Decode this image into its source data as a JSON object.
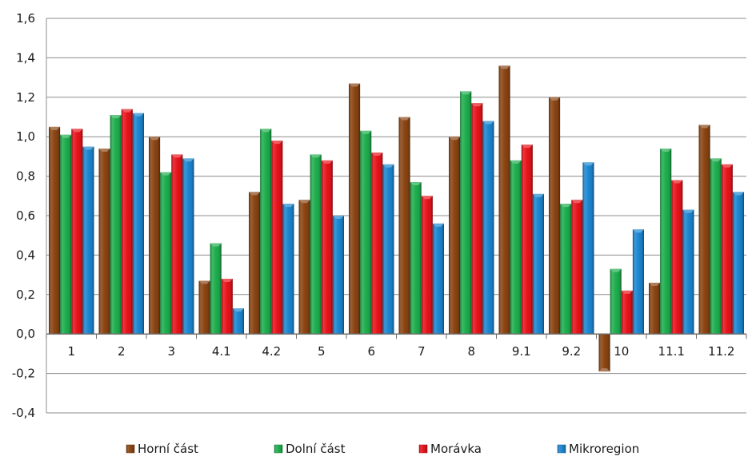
{
  "chart_data": {
    "type": "bar",
    "categories": [
      "1",
      "2",
      "3",
      "4.1",
      "4.2",
      "5",
      "6",
      "7",
      "8",
      "9.1",
      "9.2",
      "10",
      "11.1",
      "11.2"
    ],
    "series": [
      {
        "name": "Horní část",
        "color": "#8B4513",
        "values": [
          1.05,
          0.94,
          1.0,
          0.27,
          0.72,
          0.68,
          1.27,
          1.1,
          1.0,
          1.36,
          1.2,
          -0.19,
          0.26,
          1.06
        ]
      },
      {
        "name": "Dolní část",
        "color": "#1FAE4E",
        "values": [
          1.01,
          1.11,
          0.82,
          0.46,
          1.04,
          0.91,
          1.03,
          0.77,
          1.23,
          0.88,
          0.66,
          0.33,
          0.94,
          0.89
        ]
      },
      {
        "name": "Morávka",
        "color": "#E8141B",
        "values": [
          1.04,
          1.14,
          0.91,
          0.28,
          0.98,
          0.88,
          0.92,
          0.7,
          1.17,
          0.96,
          0.68,
          0.22,
          0.78,
          0.86
        ]
      },
      {
        "name": "Mikroregion",
        "color": "#1C86D1",
        "values": [
          0.95,
          1.12,
          0.89,
          0.13,
          0.66,
          0.6,
          0.86,
          0.56,
          1.08,
          0.71,
          0.87,
          0.53,
          0.63,
          0.72
        ]
      }
    ],
    "yticks": [
      "-0,4",
      "-0,2",
      "0,0",
      "0,2",
      "0,4",
      "0,6",
      "0,8",
      "1,0",
      "1,2",
      "1,4",
      "1,6"
    ],
    "ylim": [
      -0.4,
      1.6
    ],
    "ytick_step": 0.2,
    "grid": true,
    "legend_position": "bottom"
  }
}
